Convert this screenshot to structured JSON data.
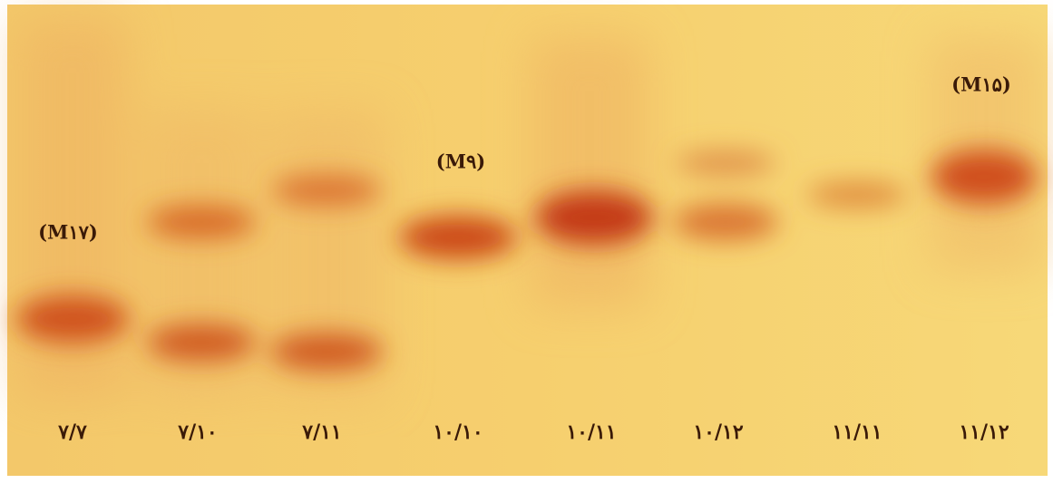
{
  "gel": {
    "lane_labels": [
      "۷/۷",
      "۷/۱۰",
      "۷/۱۱",
      "۱۰/۱۰",
      "۱۰/۱۱",
      "۱۰/۱۲",
      "۱۱/۱۱",
      "۱۱/۱۲"
    ],
    "annotations": [
      "(M۱۷)",
      "(M۹)",
      "(M۱۵)"
    ]
  }
}
